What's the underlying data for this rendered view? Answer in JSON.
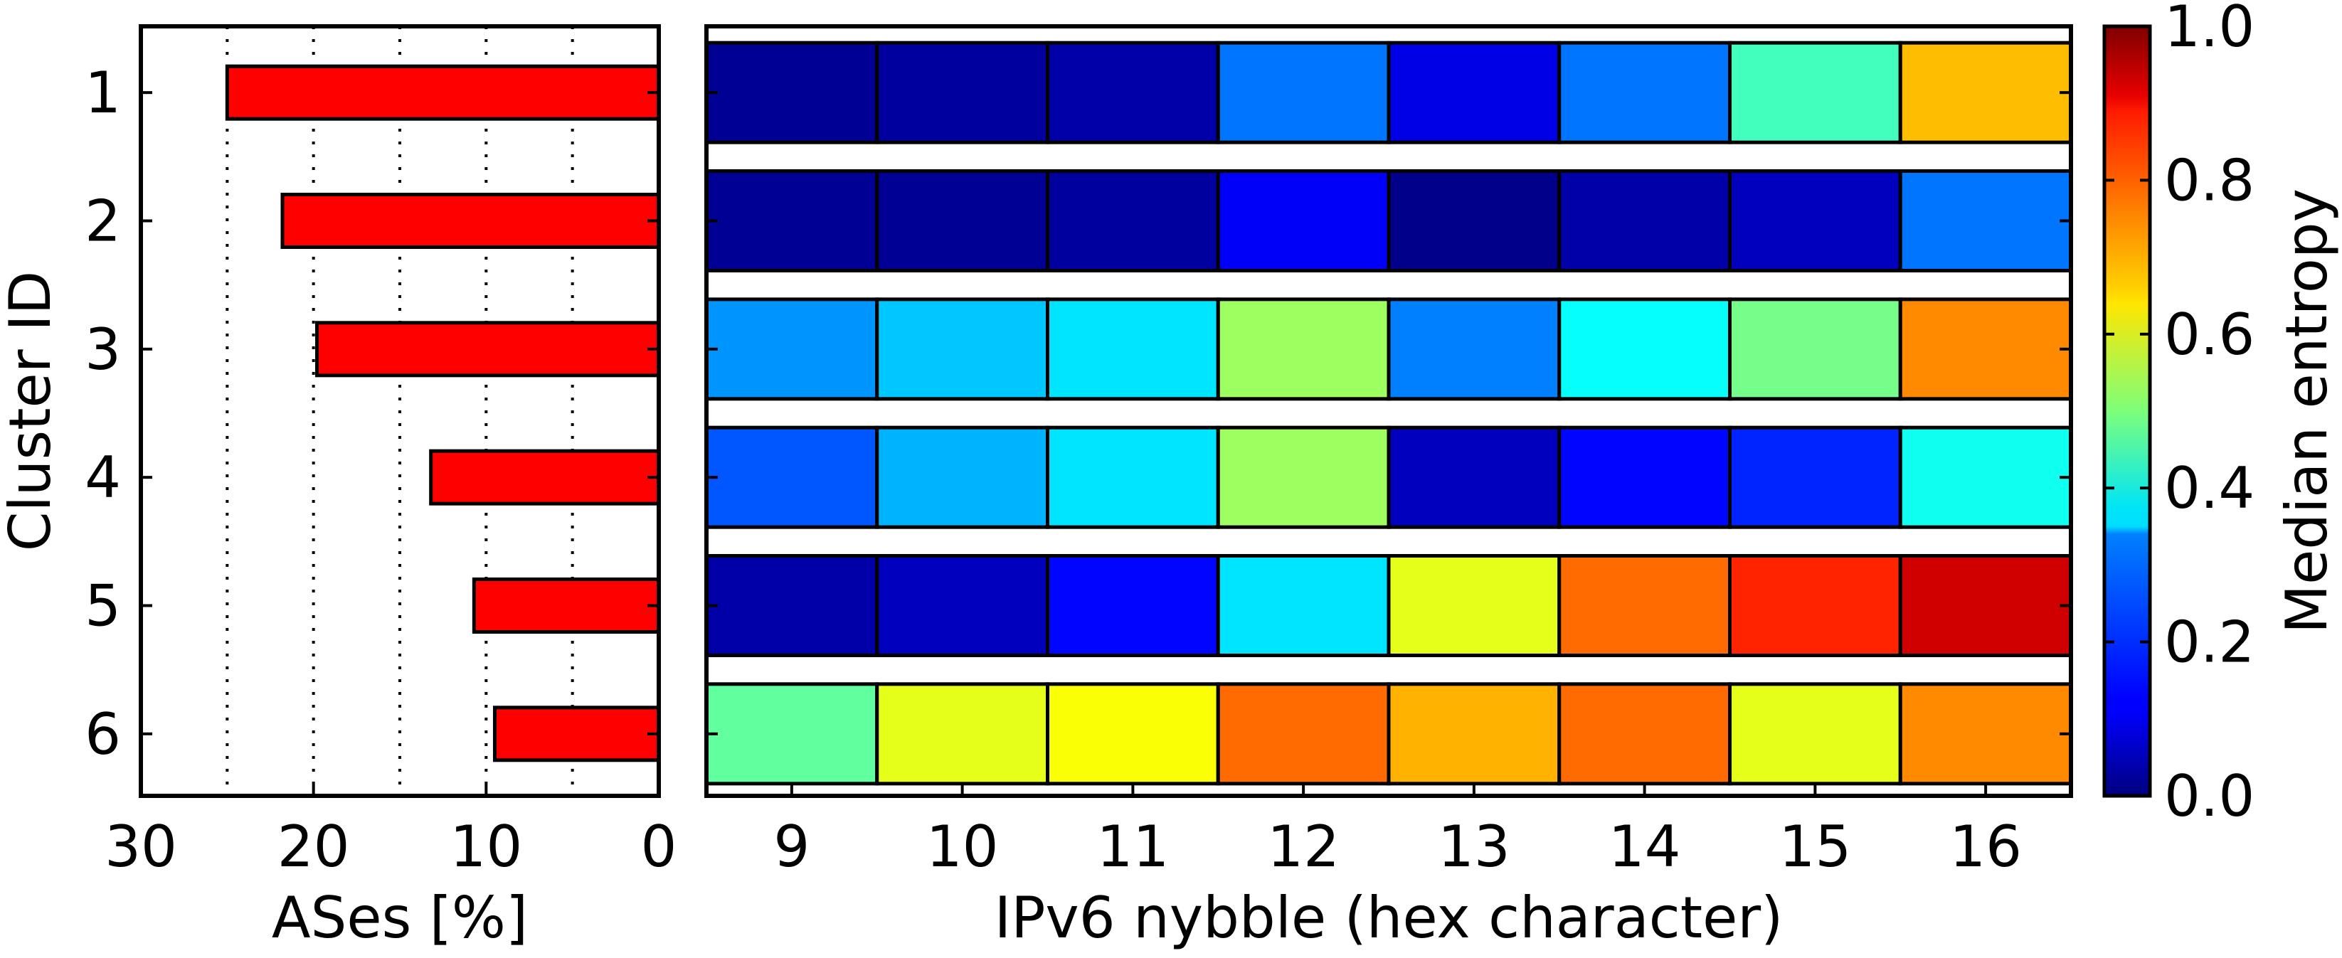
{
  "chart_data": [
    {
      "type": "bar",
      "orientation": "horizontal",
      "categories": [
        "1",
        "2",
        "3",
        "4",
        "5",
        "6"
      ],
      "values": [
        25.0,
        21.8,
        19.8,
        13.2,
        10.7,
        9.5
      ],
      "xlabel": "ASes [%]",
      "ylabel": "Cluster ID",
      "xlim": [
        30,
        0
      ],
      "xticks": [
        "30",
        "20",
        "10",
        "0"
      ],
      "grid": "vertical dotted lines at 5, 10, 15, 20, 25",
      "bar_color": "#ff0000"
    },
    {
      "type": "heatmap",
      "x": [
        "9",
        "10",
        "11",
        "12",
        "13",
        "14",
        "15",
        "16"
      ],
      "y": [
        "1",
        "2",
        "3",
        "4",
        "5",
        "6"
      ],
      "values": [
        [
          0.02,
          0.03,
          0.04,
          0.24,
          0.1,
          0.24,
          0.44,
          0.69
        ],
        [
          0.02,
          0.02,
          0.03,
          0.12,
          0.01,
          0.04,
          0.06,
          0.24
        ],
        [
          0.27,
          0.32,
          0.35,
          0.53,
          0.25,
          0.38,
          0.49,
          0.74
        ],
        [
          0.21,
          0.3,
          0.35,
          0.53,
          0.06,
          0.13,
          0.16,
          0.39
        ],
        [
          0.04,
          0.06,
          0.13,
          0.35,
          0.6,
          0.77,
          0.84,
          0.92
        ],
        [
          0.47,
          0.6,
          0.62,
          0.77,
          0.7,
          0.77,
          0.6,
          0.74
        ]
      ],
      "xlabel": "IPv6 nybble (hex character)",
      "colorbar": {
        "label": "Median entropy",
        "ticks": [
          "0.0",
          "0.2",
          "0.4",
          "0.6",
          "0.8",
          "1.0"
        ],
        "range": [
          0,
          1
        ],
        "colormap": "jet"
      }
    }
  ]
}
